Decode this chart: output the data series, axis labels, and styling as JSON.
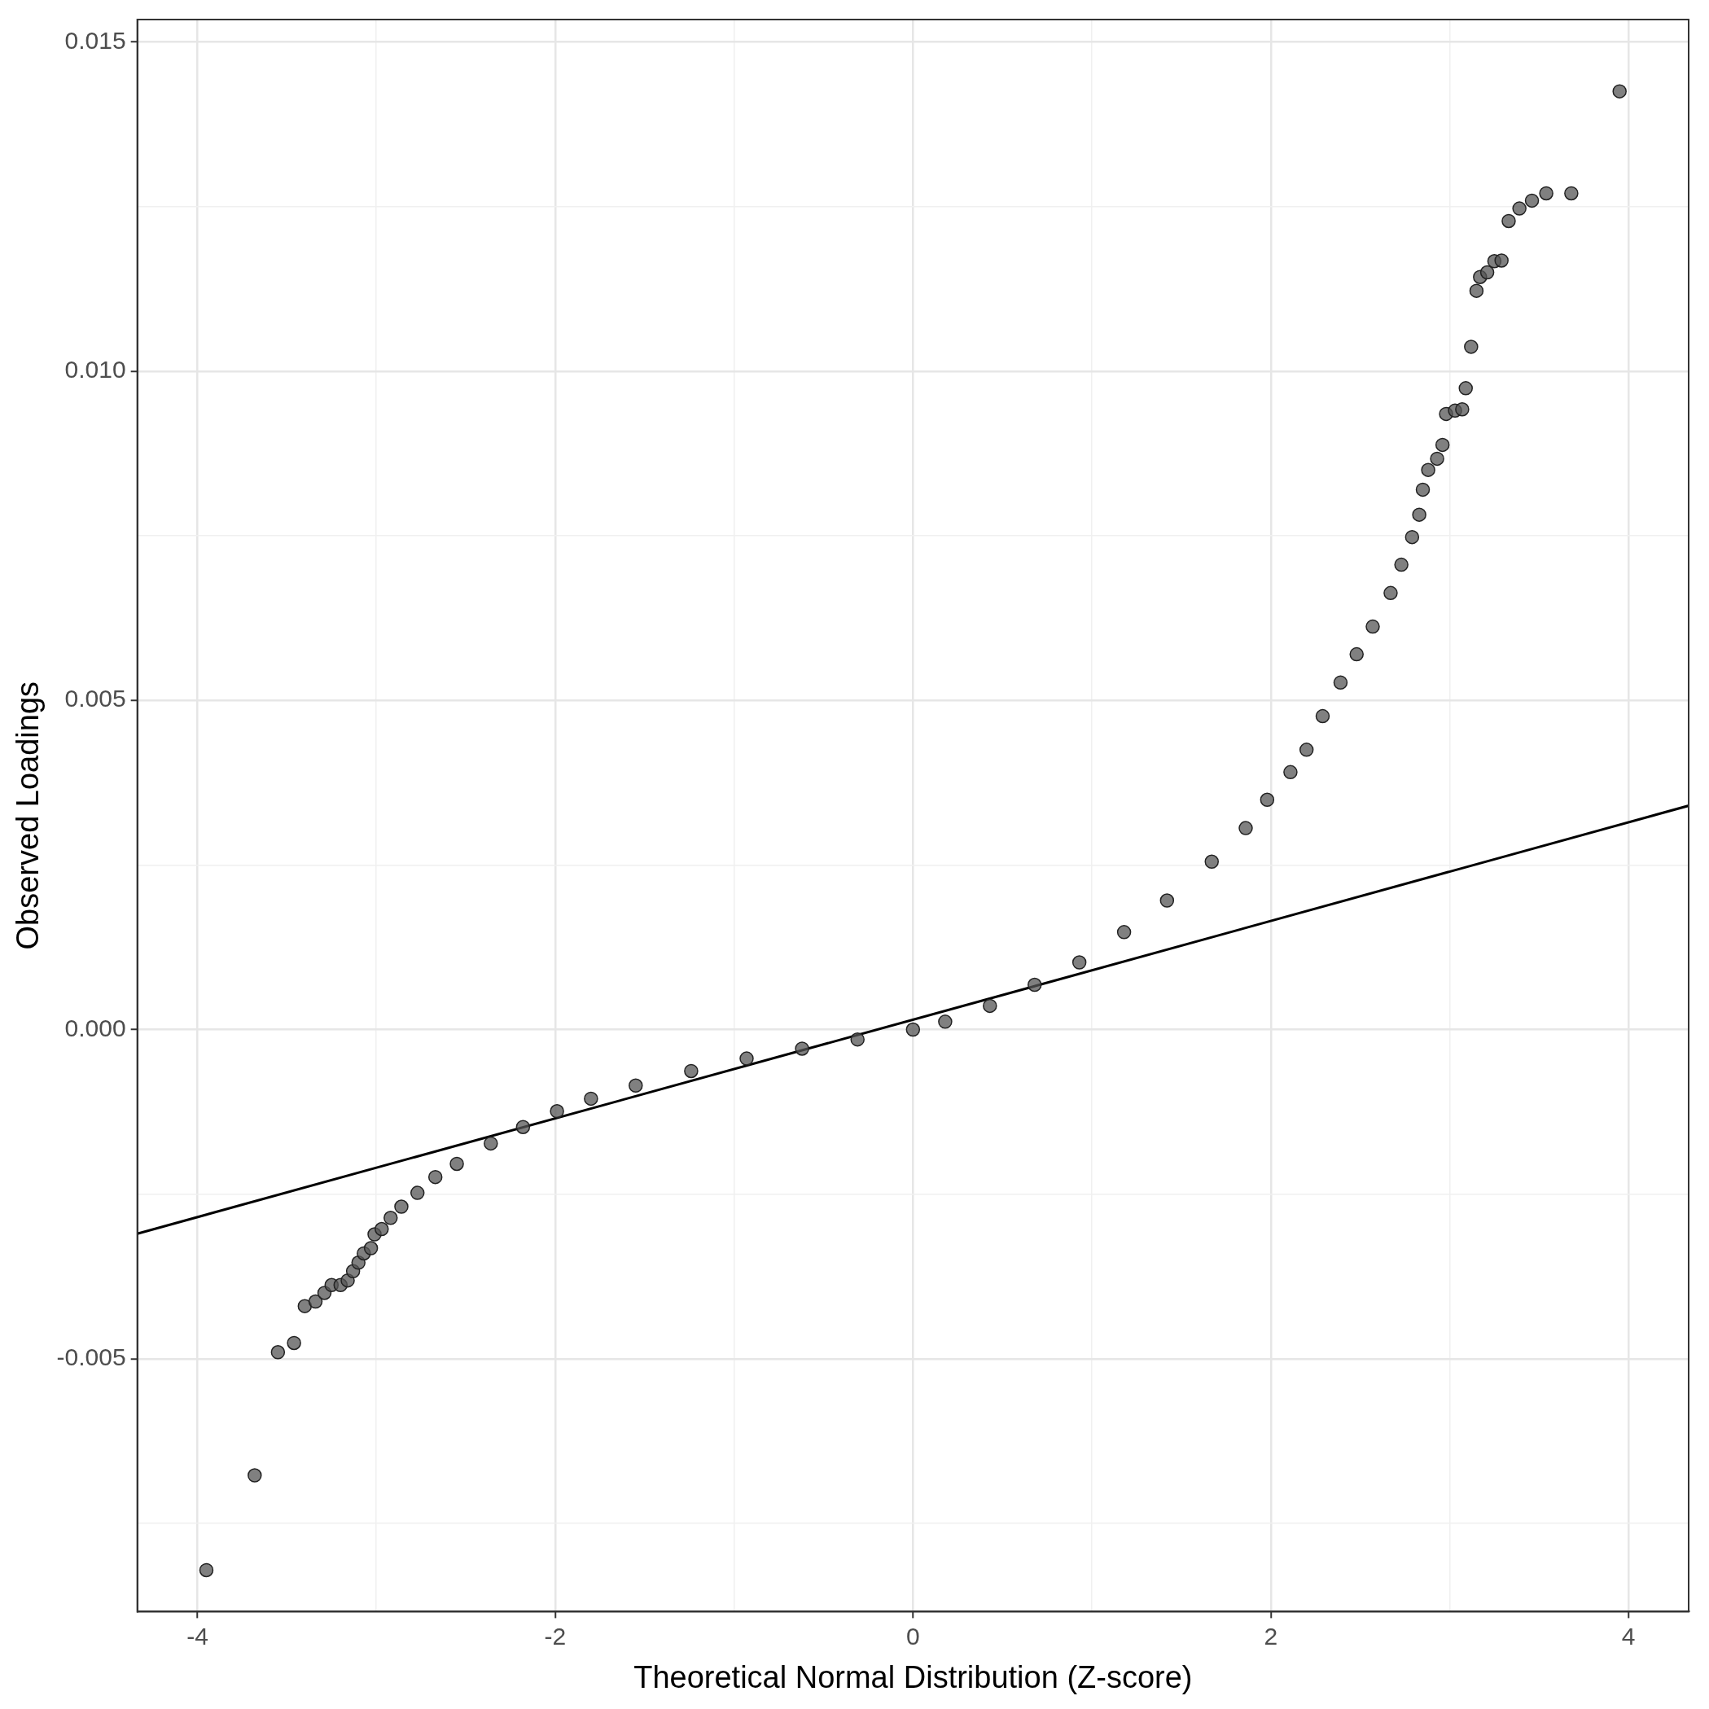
{
  "chart_data": {
    "type": "scatter",
    "xlabel": "Theoretical Normal Distribution (Z-score)",
    "ylabel": "Observed Loadings",
    "xlim": [
      -4.336,
      4.336
    ],
    "ylim": [
      -0.00884,
      0.01534
    ],
    "xticks": [
      -4,
      {
        "value": -3,
        "label": null
      },
      -2,
      {
        "value": -1,
        "label": null
      },
      0,
      {
        "value": 1,
        "label": null
      },
      2,
      {
        "value": 3,
        "label": null
      },
      4
    ],
    "yticks": [
      {
        "value": -0.0075,
        "label": null
      },
      {
        "value": -0.005,
        "label": "-0.005"
      },
      {
        "value": -0.0025,
        "label": null
      },
      {
        "value": 0,
        "label": "0.000"
      },
      {
        "value": 0.0025,
        "label": null
      },
      {
        "value": 0.005,
        "label": "0.005"
      },
      {
        "value": 0.0075,
        "label": null
      },
      {
        "value": 0.01,
        "label": "0.010"
      },
      {
        "value": 0.0125,
        "label": null
      },
      {
        "value": 0.015,
        "label": "0.015"
      }
    ],
    "grid": true,
    "series": [
      {
        "marker": "circle",
        "color": "#555555",
        "x": [
          -3.95,
          -3.68,
          -3.55,
          -3.46,
          -3.4,
          -3.34,
          -3.29,
          -3.25,
          -3.2,
          -3.16,
          -3.13,
          -3.1,
          -3.07,
          -3.03,
          -3.01,
          -2.97,
          -2.92,
          -2.86,
          -2.77,
          -2.67,
          -2.55,
          -2.36,
          -2.18,
          -1.99,
          -1.8,
          -1.55,
          -1.24,
          -0.93,
          -0.62,
          -0.31,
          0,
          0.18,
          0.43,
          0.68,
          0.93,
          1.18,
          1.42,
          1.67,
          1.86,
          1.98,
          2.11,
          2.2,
          2.29,
          2.39,
          2.48,
          2.57,
          2.67,
          2.73,
          2.79,
          2.83,
          2.85,
          2.88,
          2.93,
          2.96,
          2.98,
          3.03,
          3.07,
          3.09,
          3.12,
          3.15,
          3.17,
          3.21,
          3.25,
          3.29,
          3.33,
          3.39,
          3.46,
          3.54,
          3.68,
          3.95
        ],
        "values": [
          -0.00821,
          -0.00677,
          -0.0049,
          -0.00476,
          -0.0042,
          -0.00413,
          -0.004,
          -0.00388,
          -0.00388,
          -0.00381,
          -0.00367,
          -0.00354,
          -0.0034,
          -0.00332,
          -0.00311,
          -0.00303,
          -0.00286,
          -0.00269,
          -0.00248,
          -0.00224,
          -0.00204,
          -0.00173,
          -0.00148,
          -0.00124,
          -0.00105,
          -0.00085,
          -0.00063,
          -0.00044,
          -0.00029,
          -0.00015,
          0,
          0.00012,
          0.00036,
          0.00068,
          0.00102,
          0.00148,
          0.00196,
          0.00255,
          0.00306,
          0.00349,
          0.00391,
          0.00425,
          0.00476,
          0.00527,
          0.0057,
          0.00612,
          0.00663,
          0.00706,
          0.00748,
          0.00782,
          0.0082,
          0.0085,
          0.00867,
          0.00888,
          0.00935,
          0.0094,
          0.00942,
          0.00974,
          0.01037,
          0.01122,
          0.01143,
          0.0115,
          0.01167,
          0.01168,
          0.01228,
          0.01247,
          0.01259,
          0.0127,
          0.0127,
          0.01425
        ]
      },
      {
        "type": "line",
        "color": "#000000",
        "x": [
          -4.336,
          4.336
        ],
        "values": [
          -0.0031,
          0.0034
        ]
      }
    ]
  }
}
